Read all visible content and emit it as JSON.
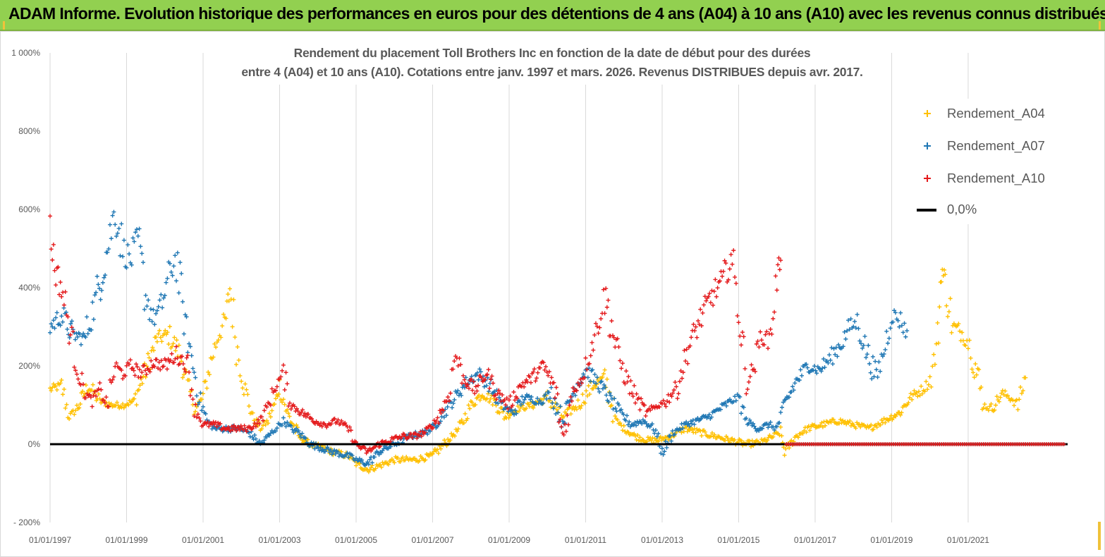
{
  "header": {
    "title": "ADAM Informe. Evolution historique des performances en euros pour des détentions de 4 ans (A04) à 10 ans (A10) avec les revenus connus distribués"
  },
  "chart_data": {
    "type": "scatter",
    "title_line1": "Rendement du placement Toll Brothers Inc en fonction de la date de début pour des durées",
    "title_line2": "entre 4 (A04) et 10 ans (A10).  Cotations entre janv. 1997 et mars. 2026.  Revenus DISTRIBUES depuis avr. 2017.",
    "xlabel": "",
    "ylabel": "",
    "xlim": [
      1997.0,
      2023.6
    ],
    "ylim": [
      -200,
      1000
    ],
    "y_ticks": [
      -200,
      0,
      200,
      400,
      600,
      800,
      1000
    ],
    "y_tick_labels": [
      "- 200%",
      "0%",
      "200%",
      "400%",
      "600%",
      "800%",
      "1 000%"
    ],
    "x_ticks": [
      1997,
      1999,
      2001,
      2003,
      2005,
      2007,
      2009,
      2011,
      2013,
      2015,
      2017,
      2019,
      2021
    ],
    "x_tick_labels": [
      "01/01/1997",
      "01/01/1999",
      "01/01/2001",
      "01/01/2003",
      "01/01/2005",
      "01/01/2007",
      "01/01/2009",
      "01/01/2011",
      "01/01/2013",
      "01/01/2015",
      "01/01/2017",
      "01/01/2019",
      "01/01/2021"
    ],
    "grid": "vertical",
    "legend_position": "right",
    "colors": {
      "A04": "#ffc000",
      "A07": "#1f77b4",
      "A10": "#e41a1c",
      "zero": "#000000"
    },
    "series": [
      {
        "name": "Rendement_A04",
        "key": "A04",
        "points": [
          [
            1997.0,
            140
          ],
          [
            1997.3,
            150
          ],
          [
            1997.5,
            70
          ],
          [
            1997.7,
            90
          ],
          [
            1998.0,
            150
          ],
          [
            1998.3,
            110
          ],
          [
            1998.6,
            100
          ],
          [
            1998.9,
            100
          ],
          [
            1999.2,
            110
          ],
          [
            1999.5,
            190
          ],
          [
            1999.8,
            270
          ],
          [
            2000.1,
            280
          ],
          [
            2000.4,
            230
          ],
          [
            2000.6,
            150
          ],
          [
            2000.8,
            90
          ],
          [
            2001.0,
            120
          ],
          [
            2001.2,
            210
          ],
          [
            2001.4,
            280
          ],
          [
            2001.6,
            320
          ],
          [
            2001.7,
            400
          ],
          [
            2001.9,
            240
          ],
          [
            2002.1,
            140
          ],
          [
            2002.3,
            70
          ],
          [
            2002.5,
            40
          ],
          [
            2002.7,
            60
          ],
          [
            2002.9,
            110
          ],
          [
            2003.0,
            150
          ],
          [
            2003.2,
            80
          ],
          [
            2003.5,
            20
          ],
          [
            2003.8,
            0
          ],
          [
            2004.1,
            -10
          ],
          [
            2004.4,
            -20
          ],
          [
            2004.8,
            -30
          ],
          [
            2005.0,
            -50
          ],
          [
            2005.3,
            -65
          ],
          [
            2005.6,
            -55
          ],
          [
            2006.0,
            -40
          ],
          [
            2006.5,
            -40
          ],
          [
            2007.0,
            -30
          ],
          [
            2007.4,
            10
          ],
          [
            2007.7,
            40
          ],
          [
            2008.0,
            100
          ],
          [
            2008.3,
            130
          ],
          [
            2008.6,
            110
          ],
          [
            2008.9,
            70
          ],
          [
            2009.2,
            90
          ],
          [
            2009.6,
            100
          ],
          [
            2010.0,
            120
          ],
          [
            2010.4,
            70
          ],
          [
            2010.8,
            100
          ],
          [
            2011.2,
            150
          ],
          [
            2011.5,
            170
          ],
          [
            2011.8,
            60
          ],
          [
            2012.0,
            40
          ],
          [
            2012.3,
            20
          ],
          [
            2012.6,
            10
          ],
          [
            2012.9,
            10
          ],
          [
            2013.2,
            20
          ],
          [
            2013.6,
            40
          ],
          [
            2014.0,
            30
          ],
          [
            2014.4,
            20
          ],
          [
            2014.8,
            10
          ],
          [
            2015.2,
            0
          ],
          [
            2015.6,
            5
          ],
          [
            2015.9,
            20
          ],
          [
            2016.1,
            30
          ],
          [
            2016.2,
            -20
          ],
          [
            2016.5,
            20
          ],
          [
            2016.8,
            40
          ],
          [
            2017.2,
            50
          ],
          [
            2017.6,
            60
          ],
          [
            2018.0,
            50
          ],
          [
            2018.4,
            40
          ],
          [
            2018.8,
            60
          ],
          [
            2019.2,
            80
          ],
          [
            2019.5,
            120
          ],
          [
            2019.8,
            140
          ],
          [
            2020.0,
            160
          ],
          [
            2020.2,
            260
          ],
          [
            2020.3,
            450
          ],
          [
            2020.4,
            410
          ],
          [
            2020.6,
            300
          ],
          [
            2020.9,
            280
          ],
          [
            2021.1,
            240
          ],
          [
            2021.4,
            100
          ],
          [
            2021.6,
            90
          ],
          [
            2021.9,
            130
          ],
          [
            2022.1,
            120
          ],
          [
            2022.3,
            100
          ],
          [
            2022.5,
            170
          ]
        ]
      },
      {
        "name": "Rendement_A07",
        "key": "A07",
        "points": [
          [
            1997.0,
            300
          ],
          [
            1997.3,
            330
          ],
          [
            1997.6,
            280
          ],
          [
            1997.9,
            270
          ],
          [
            1998.2,
            370
          ],
          [
            1998.5,
            500
          ],
          [
            1998.7,
            600
          ],
          [
            1998.9,
            500
          ],
          [
            1999.1,
            470
          ],
          [
            1999.3,
            520
          ],
          [
            1999.5,
            380
          ],
          [
            1999.7,
            320
          ],
          [
            1999.9,
            350
          ],
          [
            2000.1,
            430
          ],
          [
            2000.3,
            480
          ],
          [
            2000.5,
            320
          ],
          [
            2000.7,
            220
          ],
          [
            2000.9,
            120
          ],
          [
            2001.1,
            60
          ],
          [
            2001.3,
            40
          ],
          [
            2001.6,
            40
          ],
          [
            2001.9,
            40
          ],
          [
            2002.2,
            30
          ],
          [
            2002.5,
            0
          ],
          [
            2002.7,
            20
          ],
          [
            2002.9,
            40
          ],
          [
            2003.1,
            60
          ],
          [
            2003.3,
            40
          ],
          [
            2003.5,
            30
          ],
          [
            2003.8,
            0
          ],
          [
            2004.1,
            -10
          ],
          [
            2004.4,
            -20
          ],
          [
            2004.8,
            -30
          ],
          [
            2005.0,
            -40
          ],
          [
            2005.3,
            -50
          ],
          [
            2005.6,
            -20
          ],
          [
            2006.0,
            0
          ],
          [
            2006.4,
            20
          ],
          [
            2006.8,
            30
          ],
          [
            2007.0,
            40
          ],
          [
            2007.3,
            80
          ],
          [
            2007.6,
            120
          ],
          [
            2007.9,
            160
          ],
          [
            2008.2,
            180
          ],
          [
            2008.5,
            150
          ],
          [
            2008.8,
            100
          ],
          [
            2009.1,
            80
          ],
          [
            2009.4,
            120
          ],
          [
            2009.8,
            110
          ],
          [
            2010.1,
            130
          ],
          [
            2010.4,
            60
          ],
          [
            2010.7,
            140
          ],
          [
            2011.0,
            190
          ],
          [
            2011.3,
            160
          ],
          [
            2011.6,
            120
          ],
          [
            2011.9,
            80
          ],
          [
            2012.2,
            50
          ],
          [
            2012.5,
            60
          ],
          [
            2012.8,
            40
          ],
          [
            2013.0,
            -20
          ],
          [
            2013.3,
            30
          ],
          [
            2013.6,
            50
          ],
          [
            2013.9,
            60
          ],
          [
            2014.2,
            70
          ],
          [
            2014.5,
            90
          ],
          [
            2014.8,
            110
          ],
          [
            2015.0,
            120
          ],
          [
            2015.2,
            60
          ],
          [
            2015.5,
            40
          ],
          [
            2015.8,
            50
          ],
          [
            2016.0,
            40
          ],
          [
            2016.2,
            100
          ],
          [
            2016.5,
            160
          ],
          [
            2016.8,
            200
          ],
          [
            2017.1,
            190
          ],
          [
            2017.4,
            220
          ],
          [
            2017.7,
            260
          ],
          [
            2017.9,
            300
          ],
          [
            2018.1,
            310
          ],
          [
            2018.3,
            250
          ],
          [
            2018.6,
            170
          ],
          [
            2018.8,
            240
          ],
          [
            2019.0,
            330
          ],
          [
            2019.2,
            320
          ],
          [
            2019.4,
            290
          ]
        ]
      },
      {
        "name": "Rendement_A10",
        "key": "A10",
        "points": [
          [
            1997.0,
            540
          ],
          [
            1997.15,
            440
          ],
          [
            1997.3,
            400
          ],
          [
            1997.5,
            300
          ],
          [
            1997.7,
            200
          ],
          [
            1997.9,
            130
          ],
          [
            1998.1,
            110
          ],
          [
            1998.3,
            140
          ],
          [
            1998.5,
            100
          ],
          [
            1998.7,
            200
          ],
          [
            1998.9,
            180
          ],
          [
            1999.1,
            200
          ],
          [
            1999.4,
            180
          ],
          [
            1999.7,
            210
          ],
          [
            2000.0,
            200
          ],
          [
            2000.3,
            230
          ],
          [
            2000.6,
            200
          ],
          [
            2000.8,
            90
          ],
          [
            2001.0,
            50
          ],
          [
            2001.3,
            50
          ],
          [
            2001.6,
            40
          ],
          [
            2001.9,
            40
          ],
          [
            2002.2,
            40
          ],
          [
            2002.5,
            60
          ],
          [
            2002.7,
            100
          ],
          [
            2002.9,
            150
          ],
          [
            2003.1,
            180
          ],
          [
            2003.3,
            100
          ],
          [
            2003.6,
            80
          ],
          [
            2003.9,
            60
          ],
          [
            2004.2,
            50
          ],
          [
            2004.5,
            60
          ],
          [
            2004.8,
            40
          ],
          [
            2005.0,
            0
          ],
          [
            2005.3,
            -20
          ],
          [
            2005.6,
            0
          ],
          [
            2005.9,
            10
          ],
          [
            2006.2,
            20
          ],
          [
            2006.5,
            20
          ],
          [
            2006.8,
            30
          ],
          [
            2007.1,
            60
          ],
          [
            2007.4,
            120
          ],
          [
            2007.6,
            230
          ],
          [
            2007.8,
            170
          ],
          [
            2008.1,
            140
          ],
          [
            2008.4,
            180
          ],
          [
            2008.7,
            130
          ],
          [
            2009.0,
            100
          ],
          [
            2009.3,
            150
          ],
          [
            2009.6,
            170
          ],
          [
            2009.9,
            200
          ],
          [
            2010.2,
            140
          ],
          [
            2010.4,
            20
          ],
          [
            2010.7,
            140
          ],
          [
            2010.9,
            170
          ],
          [
            2011.1,
            230
          ],
          [
            2011.3,
            300
          ],
          [
            2011.5,
            380
          ],
          [
            2011.8,
            250
          ],
          [
            2012.0,
            180
          ],
          [
            2012.3,
            120
          ],
          [
            2012.6,
            80
          ],
          [
            2012.9,
            100
          ],
          [
            2013.1,
            110
          ],
          [
            2013.4,
            150
          ],
          [
            2013.7,
            250
          ],
          [
            2014.0,
            320
          ],
          [
            2014.3,
            380
          ],
          [
            2014.6,
            420
          ],
          [
            2014.8,
            480
          ],
          [
            2015.0,
            350
          ],
          [
            2015.2,
            150
          ],
          [
            2015.4,
            200
          ],
          [
            2015.6,
            280
          ],
          [
            2015.8,
            260
          ],
          [
            2016.0,
            420
          ],
          [
            2016.1,
            470
          ]
        ]
      }
    ],
    "zero_line": {
      "name": "0,0%",
      "value": 0
    },
    "a10_zero_range": [
      2016.25,
      2023.5
    ]
  }
}
